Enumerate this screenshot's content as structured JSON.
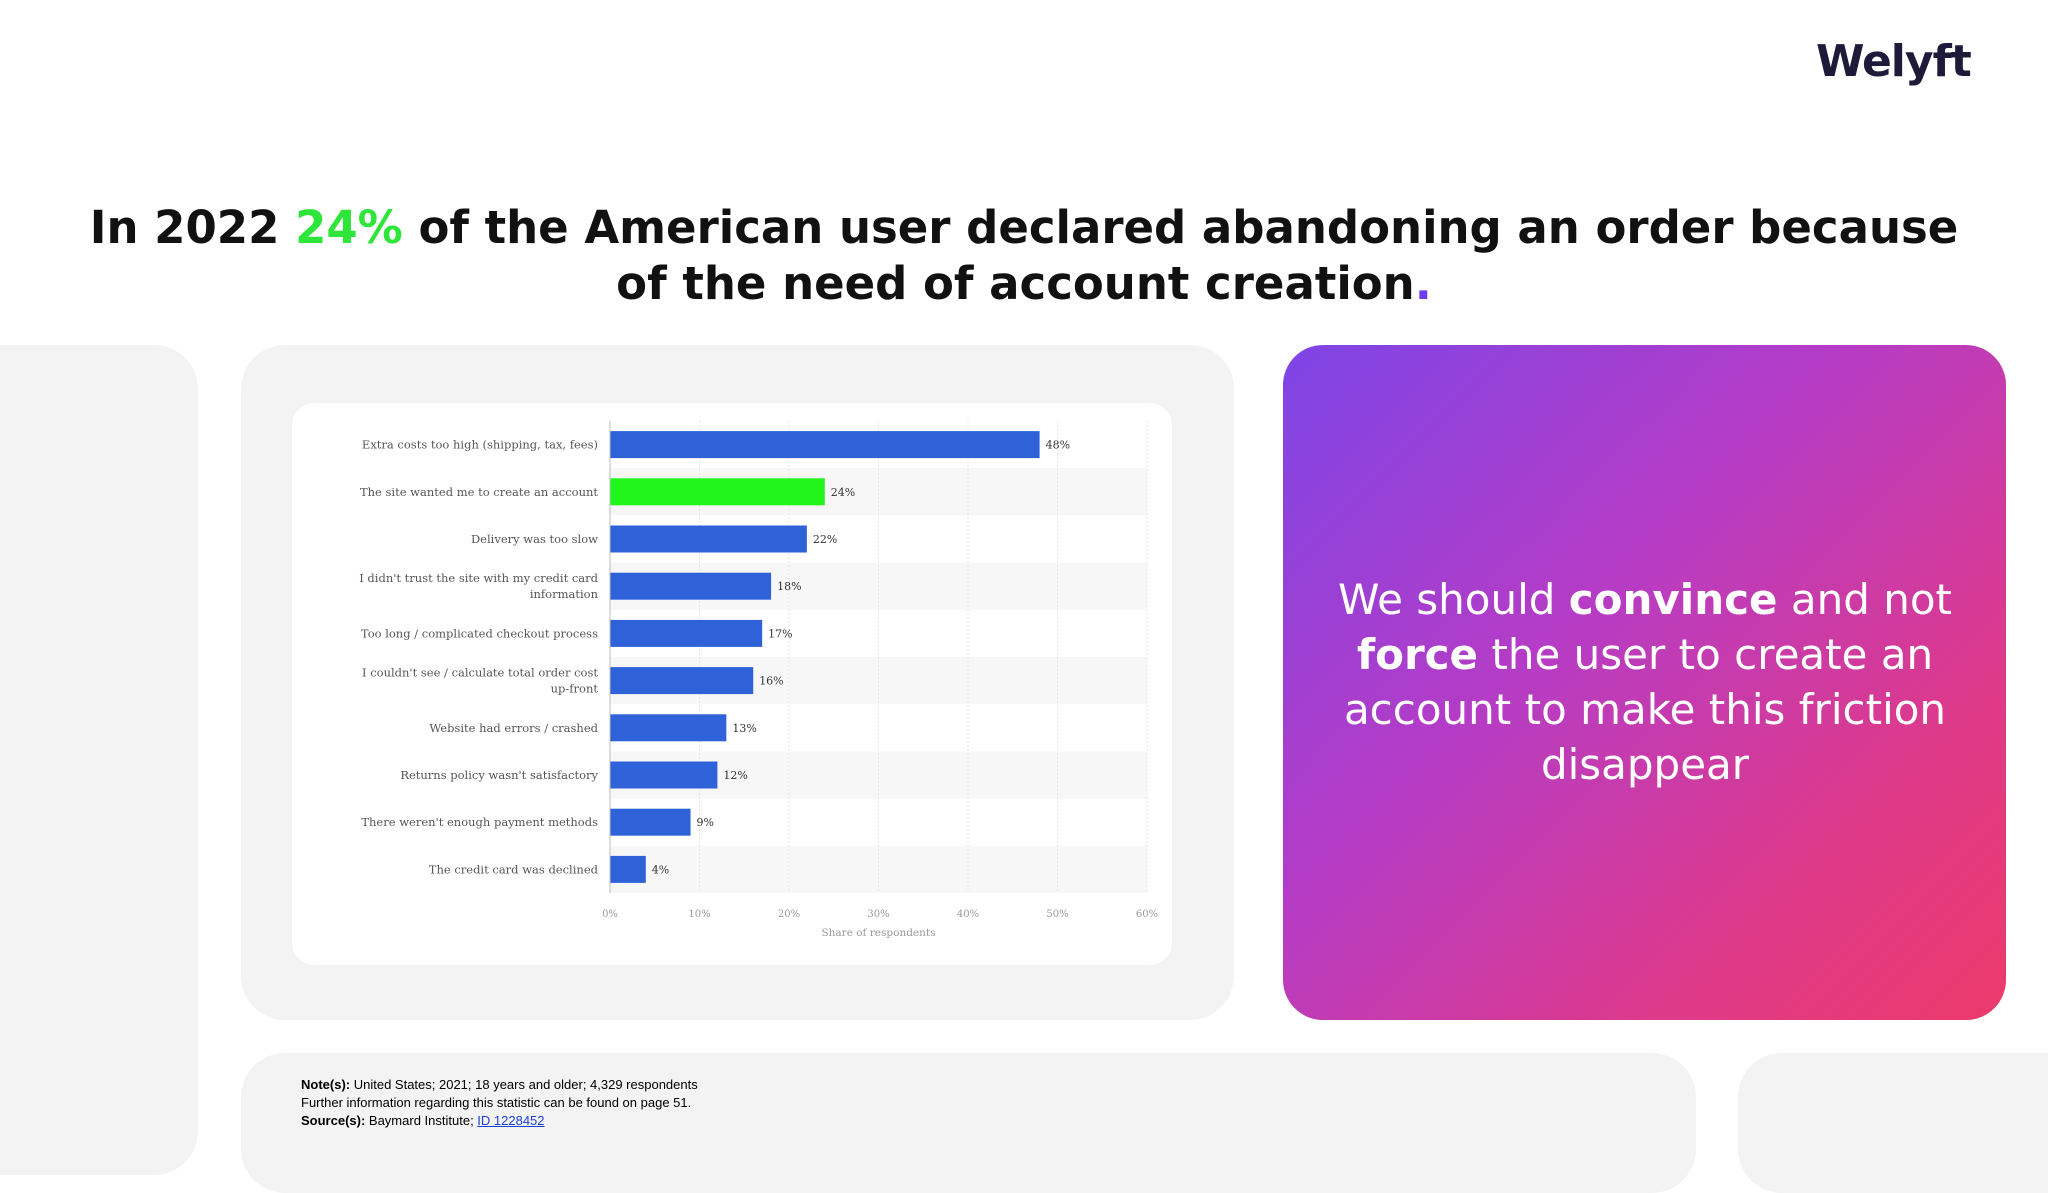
{
  "logo": {
    "text": "Welyft"
  },
  "headline": {
    "part1": "In 2022 ",
    "highlight": "24%",
    "part2": " of the American user declared abandoning an order because",
    "part3": "of the need of account creation",
    "dot": ".",
    "highlight_color": "#2ee53a",
    "dot_color": "#6d3df0"
  },
  "message": {
    "t1": "We should ",
    "b1": "convince",
    "t2": " and not ",
    "b2": "force",
    "t3": " the user to create an account to make this friction disappear"
  },
  "notes": {
    "note_label": "Note(s):",
    "note_text": " United States; 2021; 18 years and older; 4,329 respondents",
    "further": "Further information regarding this statistic can be found on page 51.",
    "source_label": "Source(s):",
    "source_text": " Baymard Institute; ",
    "source_link": "ID 1228452"
  },
  "chart_data": {
    "type": "bar",
    "orientation": "horizontal",
    "categories": [
      [
        "Extra costs too high (shipping, tax, fees)"
      ],
      [
        "The site wanted me to create an account"
      ],
      [
        "Delivery was too slow"
      ],
      [
        "I didn't trust the site with my credit card",
        "information"
      ],
      [
        "Too long / complicated checkout process"
      ],
      [
        "I couldn't see / calculate total order cost",
        "up-front"
      ],
      [
        "Website had errors / crashed"
      ],
      [
        "Returns policy wasn't satisfactory"
      ],
      [
        "There weren't enough payment methods"
      ],
      [
        "The credit card was declined"
      ]
    ],
    "values": [
      48,
      24,
      22,
      18,
      17,
      16,
      13,
      12,
      9,
      4
    ],
    "data_labels": [
      "48%",
      "24%",
      "22%",
      "18%",
      "17%",
      "16%",
      "13%",
      "12%",
      "9%",
      "4%"
    ],
    "highlight_index": 1,
    "bar_color": "#2f62d8",
    "highlight_color": "#22f51a",
    "xlim": [
      0,
      60
    ],
    "xticks": [
      0,
      10,
      20,
      30,
      40,
      50,
      60
    ],
    "xtick_labels": [
      "0%",
      "10%",
      "20%",
      "30%",
      "40%",
      "50%",
      "60%"
    ],
    "xlabel": "Share of respondents",
    "grid": true
  }
}
